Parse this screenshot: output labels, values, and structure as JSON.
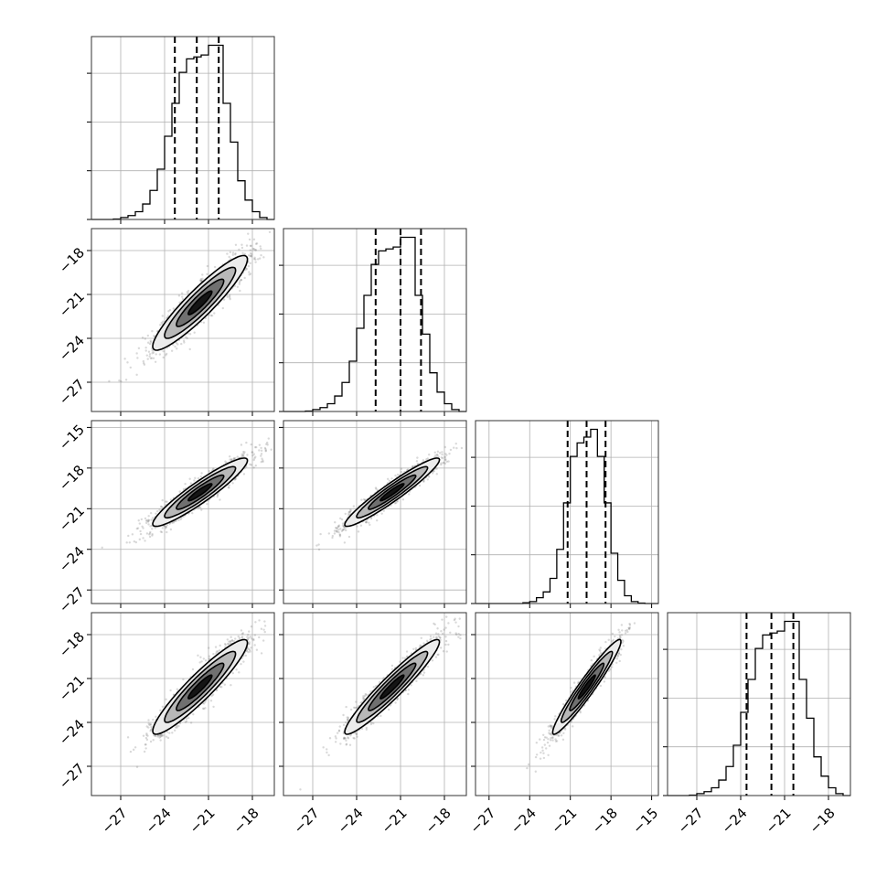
{
  "chart_data": {
    "type": "corner",
    "title": "",
    "n_params": 4,
    "param_labels": [
      "",
      "",
      "",
      ""
    ],
    "params": [
      {
        "index": 0,
        "range": [
          -29,
          -16.5
        ],
        "ticks": [
          -27,
          -24,
          -21,
          -18
        ],
        "quantiles": [
          -23.3,
          -21.8,
          -20.3
        ],
        "hist_bins": [
          -29,
          -28.5,
          -28,
          -27.5,
          -27,
          -26.5,
          -26,
          -25.5,
          -25,
          -24.5,
          -24,
          -23.5,
          -23,
          -22.5,
          -22,
          -21.5,
          -21,
          -20.5,
          -20,
          -19.5,
          -19,
          -18.5,
          -18,
          -17.5,
          -17,
          -16.5
        ],
        "hist_counts": [
          0,
          0,
          0,
          1,
          5,
          10,
          20,
          40,
          75,
          130,
          215,
          300,
          380,
          415,
          420,
          425,
          450,
          450,
          300,
          200,
          100,
          50,
          20,
          5,
          0
        ]
      },
      {
        "index": 1,
        "range": [
          -29,
          -16.5
        ],
        "ticks": [
          -27,
          -24,
          -21,
          -18
        ],
        "quantiles": [
          -22.7,
          -21.0,
          -19.6
        ],
        "hist_bins": [
          -29,
          -28.5,
          -28,
          -27.5,
          -27,
          -26.5,
          -26,
          -25.5,
          -25,
          -24.5,
          -24,
          -23.5,
          -23,
          -22.5,
          -22,
          -21.5,
          -21,
          -20.5,
          -20,
          -19.5,
          -19,
          -18.5,
          -18,
          -17.5,
          -17,
          -16.5
        ],
        "hist_counts": [
          0,
          0,
          0,
          1,
          5,
          10,
          20,
          40,
          75,
          130,
          215,
          300,
          380,
          415,
          420,
          425,
          450,
          450,
          300,
          200,
          100,
          50,
          20,
          5,
          0
        ]
      },
      {
        "index": 2,
        "range": [
          -28,
          -14.5
        ],
        "ticks": [
          -27,
          -24,
          -21,
          -18,
          -15
        ],
        "quantiles": [
          -21.2,
          -19.8,
          -18.4
        ],
        "hist_bins": [
          -28,
          -27.5,
          -27,
          -26.5,
          -26,
          -25.5,
          -25,
          -24.5,
          -24,
          -23.5,
          -23,
          -22.5,
          -22,
          -21.5,
          -21,
          -20.5,
          -20,
          -19.5,
          -19,
          -18.5,
          -18,
          -17.5,
          -17,
          -16.5,
          -16,
          -15.5,
          -15,
          -14.5
        ],
        "hist_counts": [
          0,
          0,
          0,
          0,
          0,
          0,
          0,
          2,
          5,
          15,
          30,
          65,
          140,
          260,
          380,
          415,
          430,
          450,
          380,
          260,
          130,
          60,
          20,
          5,
          1,
          0,
          0
        ]
      },
      {
        "index": 3,
        "range": [
          -29,
          -16.5
        ],
        "ticks": [
          -27,
          -24,
          -21,
          -18
        ],
        "quantiles": [
          -23.6,
          -21.9,
          -20.4
        ],
        "hist_bins": [
          -29,
          -28.5,
          -28,
          -27.5,
          -27,
          -26.5,
          -26,
          -25.5,
          -25,
          -24.5,
          -24,
          -23.5,
          -23,
          -22.5,
          -22,
          -21.5,
          -21,
          -20.5,
          -20,
          -19.5,
          -19,
          -18.5,
          -18,
          -17.5,
          -17,
          -16.5
        ],
        "hist_counts": [
          0,
          0,
          0,
          1,
          5,
          10,
          20,
          40,
          75,
          130,
          215,
          300,
          380,
          415,
          420,
          425,
          450,
          450,
          300,
          200,
          100,
          50,
          20,
          5,
          0
        ]
      }
    ],
    "correlations": [
      [
        1.0,
        0.92,
        0.93,
        0.93
      ],
      [
        0.92,
        1.0,
        0.95,
        0.95
      ],
      [
        0.93,
        0.95,
        1.0,
        0.96
      ],
      [
        0.93,
        0.95,
        0.96,
        1.0
      ]
    ],
    "contour_levels_sigma": [
      0.5,
      1.0,
      1.5,
      2.0
    ],
    "grid": true,
    "colors": {
      "line": "#000000",
      "points": "#777777",
      "frame": "#333333",
      "grid": "#b0b0b0"
    }
  }
}
